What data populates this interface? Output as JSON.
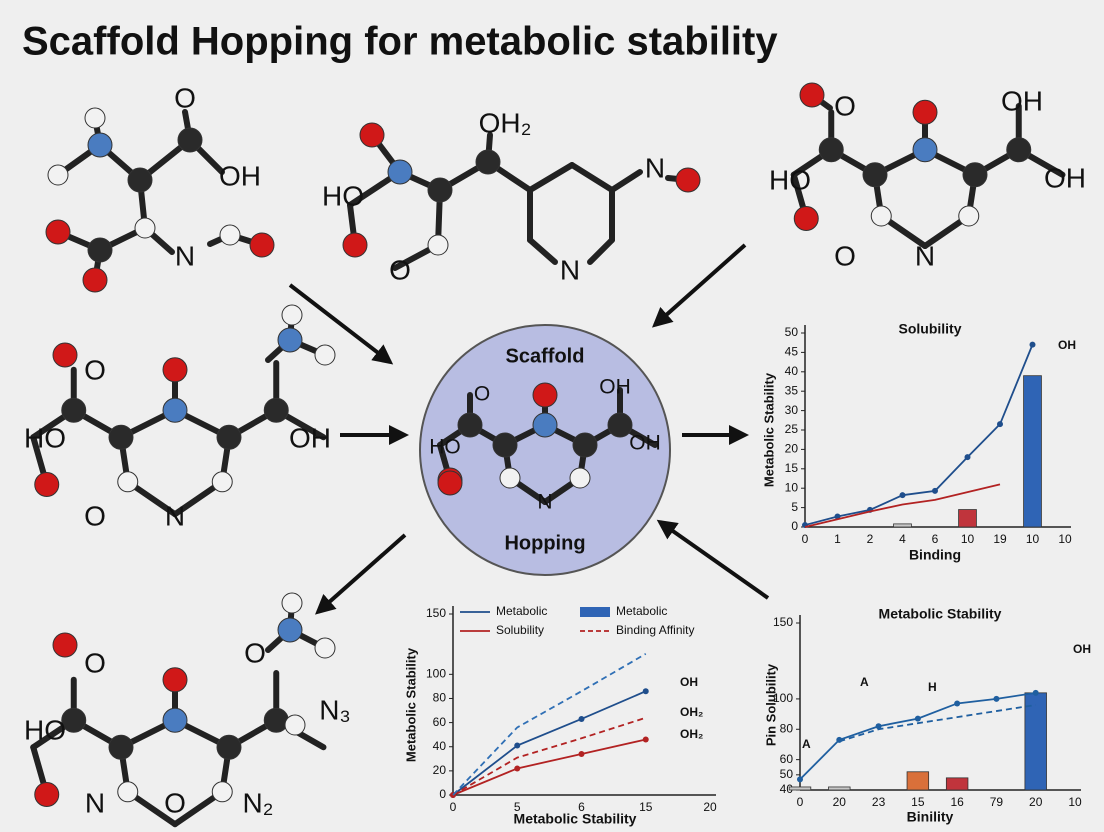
{
  "title": "Scaffold Hopping for metabolic stability",
  "molecules": [
    {
      "labels": [
        "O",
        "OH",
        "N"
      ]
    },
    {
      "labels": [
        "OH₂",
        "HO",
        "O",
        "N",
        "N"
      ]
    },
    {
      "labels": [
        "O",
        "OH",
        "HO",
        "OH",
        "O",
        "N"
      ]
    },
    {
      "labels": [
        "O",
        "HO",
        "OH",
        "O",
        "N"
      ]
    },
    {
      "labels": [
        "O",
        "O",
        "N₃",
        "HO",
        "N",
        "O",
        "N₂"
      ]
    }
  ],
  "center": {
    "title": "Scaffold",
    "subtitle": "Hopping",
    "labels": [
      "O",
      "OH",
      "HO",
      "OH",
      "N"
    ]
  },
  "chart_data": [
    {
      "type": "line",
      "title": "Solubility",
      "y_label": "Metabolic Stability",
      "x_label": "Binding",
      "categories": [
        "0",
        "1",
        "2",
        "4",
        "6",
        "10",
        "19",
        "10",
        "10"
      ],
      "ylim": [
        0,
        50
      ],
      "yticks": [
        0,
        5,
        10,
        15,
        20,
        25,
        30,
        35,
        40,
        45,
        50
      ],
      "series": [
        {
          "type": "bar",
          "color": "#c8c8c8",
          "values": [
            null,
            null,
            null,
            0.8,
            null,
            null,
            null,
            null,
            null
          ]
        },
        {
          "type": "bar",
          "color": "#c0343c",
          "values": [
            null,
            null,
            null,
            null,
            null,
            4.5,
            null,
            null,
            null
          ]
        },
        {
          "type": "bar",
          "color": "#2f64b5",
          "values": [
            null,
            null,
            null,
            null,
            null,
            null,
            null,
            39,
            null
          ]
        },
        {
          "type": "line",
          "color": "#1f4e8c",
          "marker": true,
          "values": [
            0.5,
            2.7,
            4.4,
            8.2,
            9.3,
            18,
            26.5,
            47,
            null
          ]
        },
        {
          "type": "line",
          "color": "#b22222",
          "values": [
            0,
            2,
            4,
            5.8,
            7,
            9,
            11,
            null,
            null
          ]
        }
      ],
      "annotations": [
        "OH"
      ]
    },
    {
      "type": "line",
      "y_label": "Metabolic Stability",
      "x_label": "Metabolic Stability",
      "categories": [
        "0",
        "5",
        "6",
        "15",
        "20"
      ],
      "ylim": [
        0,
        150
      ],
      "yticks": [
        0,
        20,
        40,
        60,
        80,
        100,
        150
      ],
      "legend": true,
      "series": [
        {
          "name": "Metabolic",
          "type": "line",
          "color": "#1f4e8c",
          "marker": true,
          "values": [
            0,
            41,
            63,
            86,
            null
          ]
        },
        {
          "name": "Solubility",
          "type": "line",
          "color": "#b22222",
          "marker": true,
          "values": [
            0,
            22,
            34,
            46,
            null
          ]
        },
        {
          "name": "Metabolic",
          "type": "bar",
          "color": "#2f64b5",
          "values": [
            null,
            null,
            null,
            null,
            null
          ]
        },
        {
          "name": "Binding Affinity",
          "type": "line",
          "color": "#b22222",
          "dash": true,
          "values": [
            0,
            31,
            47,
            64,
            null
          ]
        },
        {
          "type": "line",
          "color": "#2f6fb5",
          "dash": true,
          "values": [
            0,
            56,
            86,
            117,
            null
          ]
        }
      ],
      "annotations": [
        "OH",
        "OH₂",
        "OH₂"
      ]
    },
    {
      "type": "line",
      "title": "Metabolic Stability",
      "y_label": "Pin Solubility",
      "x_label": "Binility",
      "categories": [
        "0",
        "20",
        "23",
        "15",
        "16",
        "79",
        "20",
        "10"
      ],
      "ylim": [
        40,
        150
      ],
      "yticks": [
        40,
        50,
        60,
        80,
        100,
        150
      ],
      "series": [
        {
          "type": "bar",
          "color": "#c8c8c8",
          "values": [
            42,
            42,
            null,
            null,
            null,
            null,
            null,
            null
          ]
        },
        {
          "type": "bar",
          "color": "#d9703a",
          "values": [
            null,
            null,
            null,
            52,
            null,
            null,
            null,
            null
          ]
        },
        {
          "type": "bar",
          "color": "#c0343c",
          "values": [
            null,
            null,
            null,
            null,
            48,
            null,
            null,
            null
          ]
        },
        {
          "type": "bar",
          "color": "#2f64b5",
          "values": [
            null,
            null,
            null,
            null,
            null,
            null,
            104,
            null
          ]
        },
        {
          "type": "line",
          "color": "#1f5fa0",
          "dash": true,
          "values": [
            null,
            72,
            80,
            84,
            88,
            92,
            96,
            null
          ]
        },
        {
          "type": "line",
          "color": "#1f5fa0",
          "marker": true,
          "values": [
            47,
            73,
            82,
            87,
            97,
            100,
            104,
            null
          ]
        }
      ],
      "annotations": [
        "OH",
        "H",
        "A",
        "A"
      ]
    }
  ]
}
